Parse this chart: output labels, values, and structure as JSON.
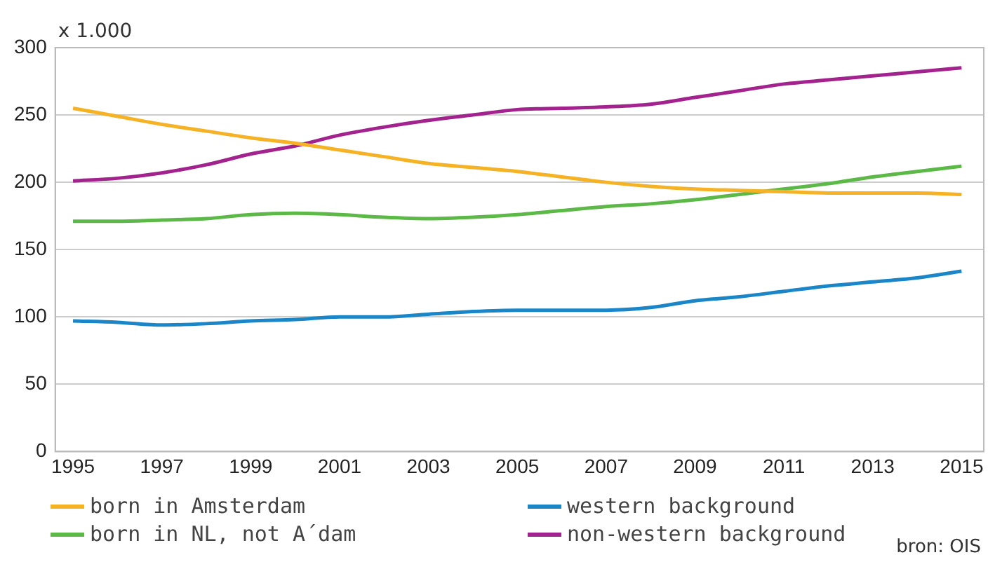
{
  "chart_data": {
    "type": "line",
    "ylabel": "x 1.000",
    "x": [
      1995,
      1996,
      1997,
      1998,
      1999,
      2000,
      2001,
      2002,
      2003,
      2004,
      2005,
      2006,
      2007,
      2008,
      2009,
      2010,
      2011,
      2012,
      2013,
      2014,
      2015
    ],
    "xlim": [
      1994.6,
      2015.5
    ],
    "xticks": [
      1995,
      1997,
      1999,
      2001,
      2003,
      2005,
      2007,
      2009,
      2011,
      2013,
      2015
    ],
    "ylim": [
      0,
      300
    ],
    "yticks": [
      0,
      50,
      100,
      150,
      200,
      250,
      300
    ],
    "grid": "y",
    "legend": "bottom",
    "marker": "none",
    "line_style": "solid",
    "series": [
      {
        "name": "born in Amsterdam",
        "color": "#f5b225",
        "values": [
          255,
          249,
          243,
          238,
          233,
          229,
          224,
          219,
          214,
          211,
          208,
          204,
          200,
          197,
          195,
          194,
          193,
          192,
          192,
          192,
          191
        ]
      },
      {
        "name": "western background",
        "color": "#1a86c8",
        "values": [
          97,
          96,
          94,
          95,
          97,
          98,
          100,
          100,
          102,
          104,
          105,
          105,
          105,
          107,
          112,
          115,
          119,
          123,
          126,
          129,
          134
        ]
      },
      {
        "name": "born in NL, not A´dam",
        "color": "#5cb947",
        "values": [
          171,
          171,
          172,
          173,
          176,
          177,
          176,
          174,
          173,
          174,
          176,
          179,
          182,
          184,
          187,
          191,
          195,
          199,
          204,
          208,
          212
        ]
      },
      {
        "name": "non-western background",
        "color": "#a3238e",
        "values": [
          201,
          203,
          207,
          213,
          221,
          227,
          235,
          241,
          246,
          250,
          254,
          255,
          256,
          258,
          263,
          268,
          273,
          276,
          279,
          282,
          285
        ]
      }
    ],
    "annotations": [
      "bron: OIS"
    ]
  }
}
